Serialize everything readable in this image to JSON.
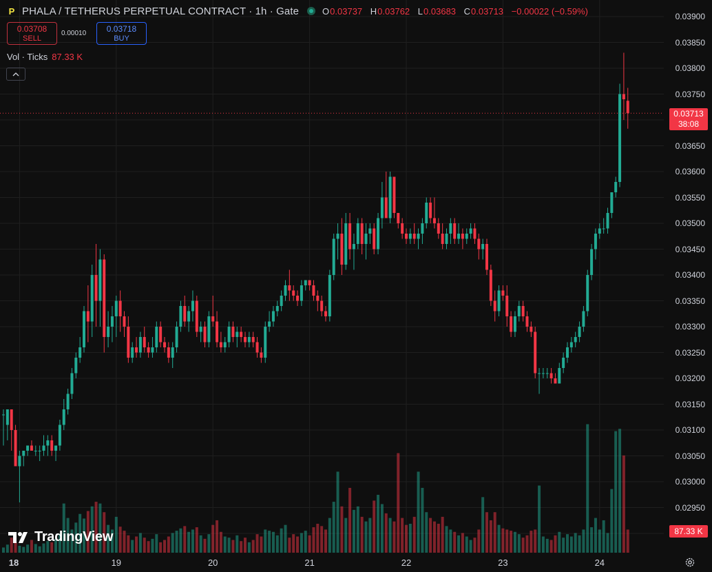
{
  "header": {
    "title": "PHALA / TETHERUS PERPETUAL CONTRACT · 1h · Gate",
    "ohlc": {
      "o_label": "O",
      "o": "0.03737",
      "h_label": "H",
      "h": "0.03762",
      "l_label": "L",
      "l": "0.03683",
      "c_label": "C",
      "c": "0.03713",
      "change": "−0.00022 (−0.59%)"
    }
  },
  "trade": {
    "sell_price": "0.03708",
    "sell_label": "SELL",
    "spread": "0.00010",
    "buy_price": "0.03718",
    "buy_label": "BUY"
  },
  "volume_indicator": {
    "label": "Vol · Ticks",
    "value": "87.33 K"
  },
  "price_label": {
    "price": "0.03713",
    "countdown": "38:08"
  },
  "volume_label": "87.33 K",
  "branding": "TradingView",
  "colors": {
    "up": "#22ab94",
    "down": "#f23645",
    "background": "#0f0f0f",
    "grid": "#1f1f1f"
  },
  "chart_data": {
    "type": "candlestick",
    "interval": "1h",
    "price_ylim": [
      0.0288,
      0.0391
    ],
    "ytick_labels": [
      "0.03900",
      "0.03850",
      "0.03800",
      "0.03750",
      "0.03700",
      "0.03650",
      "0.03600",
      "0.03550",
      "0.03500",
      "0.03450",
      "0.03400",
      "0.03350",
      "0.03300",
      "0.03250",
      "0.03200",
      "0.03150",
      "0.03100",
      "0.03050",
      "0.03000",
      "0.02950",
      "0.02900"
    ],
    "xtick_labels": [
      "18",
      "19",
      "20",
      "21",
      "22",
      "23",
      "24"
    ],
    "last_price": 0.03713,
    "candles": [
      {
        "o": 0.0313,
        "h": 0.0314,
        "l": 0.0307,
        "c": 0.0313,
        "v": 9
      },
      {
        "o": 0.0311,
        "h": 0.0314,
        "l": 0.0308,
        "c": 0.0314,
        "v": 14
      },
      {
        "o": 0.0314,
        "h": 0.0314,
        "l": 0.0306,
        "c": 0.031,
        "v": 26
      },
      {
        "o": 0.031,
        "h": 0.0311,
        "l": 0.0303,
        "c": 0.0303,
        "v": 18
      },
      {
        "o": 0.0303,
        "h": 0.0306,
        "l": 0.0296,
        "c": 0.0305,
        "v": 12
      },
      {
        "o": 0.0305,
        "h": 0.0306,
        "l": 0.0303,
        "c": 0.0306,
        "v": 10
      },
      {
        "o": 0.0306,
        "h": 0.0307,
        "l": 0.0305,
        "c": 0.0307,
        "v": 14
      },
      {
        "o": 0.0307,
        "h": 0.0308,
        "l": 0.0306,
        "c": 0.0306,
        "v": 22
      },
      {
        "o": 0.0306,
        "h": 0.0307,
        "l": 0.0305,
        "c": 0.0306,
        "v": 15
      },
      {
        "o": 0.0306,
        "h": 0.0307,
        "l": 0.0304,
        "c": 0.0306,
        "v": 11
      },
      {
        "o": 0.0306,
        "h": 0.0309,
        "l": 0.0305,
        "c": 0.0307,
        "v": 16
      },
      {
        "o": 0.0307,
        "h": 0.0309,
        "l": 0.0305,
        "c": 0.0308,
        "v": 20
      },
      {
        "o": 0.0308,
        "h": 0.0309,
        "l": 0.0305,
        "c": 0.0306,
        "v": 18
      },
      {
        "o": 0.0306,
        "h": 0.0307,
        "l": 0.0304,
        "c": 0.0307,
        "v": 24
      },
      {
        "o": 0.0307,
        "h": 0.0312,
        "l": 0.0306,
        "c": 0.0311,
        "v": 33
      },
      {
        "o": 0.0311,
        "h": 0.0316,
        "l": 0.031,
        "c": 0.0314,
        "v": 85
      },
      {
        "o": 0.0314,
        "h": 0.0318,
        "l": 0.0313,
        "c": 0.0317,
        "v": 60
      },
      {
        "o": 0.0317,
        "h": 0.0322,
        "l": 0.0316,
        "c": 0.0321,
        "v": 40
      },
      {
        "o": 0.0321,
        "h": 0.0325,
        "l": 0.032,
        "c": 0.0324,
        "v": 52
      },
      {
        "o": 0.0324,
        "h": 0.0328,
        "l": 0.0323,
        "c": 0.0326,
        "v": 67
      },
      {
        "o": 0.0326,
        "h": 0.0334,
        "l": 0.0325,
        "c": 0.0333,
        "v": 59
      },
      {
        "o": 0.0333,
        "h": 0.0338,
        "l": 0.0327,
        "c": 0.0331,
        "v": 72
      },
      {
        "o": 0.0331,
        "h": 0.0342,
        "l": 0.0328,
        "c": 0.034,
        "v": 80
      },
      {
        "o": 0.034,
        "h": 0.0346,
        "l": 0.033,
        "c": 0.0335,
        "v": 88
      },
      {
        "o": 0.0335,
        "h": 0.0345,
        "l": 0.033,
        "c": 0.0343,
        "v": 85
      },
      {
        "o": 0.0343,
        "h": 0.0344,
        "l": 0.0325,
        "c": 0.0328,
        "v": 70
      },
      {
        "o": 0.0328,
        "h": 0.0333,
        "l": 0.0326,
        "c": 0.033,
        "v": 48
      },
      {
        "o": 0.033,
        "h": 0.0334,
        "l": 0.0327,
        "c": 0.0332,
        "v": 40
      },
      {
        "o": 0.0332,
        "h": 0.0336,
        "l": 0.0328,
        "c": 0.0335,
        "v": 62
      },
      {
        "o": 0.0335,
        "h": 0.0337,
        "l": 0.0329,
        "c": 0.0332,
        "v": 45
      },
      {
        "o": 0.0332,
        "h": 0.0333,
        "l": 0.0328,
        "c": 0.033,
        "v": 38
      },
      {
        "o": 0.033,
        "h": 0.0332,
        "l": 0.0323,
        "c": 0.0324,
        "v": 30
      },
      {
        "o": 0.0324,
        "h": 0.0327,
        "l": 0.0323,
        "c": 0.0326,
        "v": 22
      },
      {
        "o": 0.0326,
        "h": 0.0328,
        "l": 0.0324,
        "c": 0.0325,
        "v": 28
      },
      {
        "o": 0.0325,
        "h": 0.0329,
        "l": 0.0324,
        "c": 0.0328,
        "v": 34
      },
      {
        "o": 0.0328,
        "h": 0.033,
        "l": 0.0325,
        "c": 0.0326,
        "v": 26
      },
      {
        "o": 0.0326,
        "h": 0.0327,
        "l": 0.0324,
        "c": 0.0325,
        "v": 20
      },
      {
        "o": 0.0325,
        "h": 0.0328,
        "l": 0.0324,
        "c": 0.0326,
        "v": 24
      },
      {
        "o": 0.0326,
        "h": 0.0331,
        "l": 0.0325,
        "c": 0.033,
        "v": 32
      },
      {
        "o": 0.033,
        "h": 0.0331,
        "l": 0.0326,
        "c": 0.0327,
        "v": 18
      },
      {
        "o": 0.0327,
        "h": 0.0328,
        "l": 0.0325,
        "c": 0.0326,
        "v": 22
      },
      {
        "o": 0.0326,
        "h": 0.0327,
        "l": 0.0323,
        "c": 0.0324,
        "v": 28
      },
      {
        "o": 0.0324,
        "h": 0.0327,
        "l": 0.0322,
        "c": 0.0326,
        "v": 34
      },
      {
        "o": 0.0326,
        "h": 0.0331,
        "l": 0.0325,
        "c": 0.033,
        "v": 38
      },
      {
        "o": 0.033,
        "h": 0.0335,
        "l": 0.0329,
        "c": 0.0334,
        "v": 42
      },
      {
        "o": 0.0334,
        "h": 0.0336,
        "l": 0.033,
        "c": 0.0331,
        "v": 46
      },
      {
        "o": 0.0331,
        "h": 0.0334,
        "l": 0.0329,
        "c": 0.0333,
        "v": 36
      },
      {
        "o": 0.0333,
        "h": 0.0337,
        "l": 0.0331,
        "c": 0.0335,
        "v": 40
      },
      {
        "o": 0.0335,
        "h": 0.0336,
        "l": 0.0328,
        "c": 0.0329,
        "v": 44
      },
      {
        "o": 0.0329,
        "h": 0.0331,
        "l": 0.0327,
        "c": 0.033,
        "v": 30
      },
      {
        "o": 0.033,
        "h": 0.0331,
        "l": 0.0326,
        "c": 0.0327,
        "v": 24
      },
      {
        "o": 0.0327,
        "h": 0.0333,
        "l": 0.0326,
        "c": 0.0332,
        "v": 32
      },
      {
        "o": 0.0332,
        "h": 0.0336,
        "l": 0.033,
        "c": 0.0331,
        "v": 48
      },
      {
        "o": 0.0331,
        "h": 0.0333,
        "l": 0.0326,
        "c": 0.0327,
        "v": 56
      },
      {
        "o": 0.0327,
        "h": 0.0329,
        "l": 0.0325,
        "c": 0.0326,
        "v": 36
      },
      {
        "o": 0.0326,
        "h": 0.0328,
        "l": 0.0325,
        "c": 0.0327,
        "v": 28
      },
      {
        "o": 0.0327,
        "h": 0.0331,
        "l": 0.0326,
        "c": 0.033,
        "v": 26
      },
      {
        "o": 0.033,
        "h": 0.0331,
        "l": 0.0327,
        "c": 0.0328,
        "v": 22
      },
      {
        "o": 0.0328,
        "h": 0.033,
        "l": 0.0326,
        "c": 0.0329,
        "v": 30
      },
      {
        "o": 0.0329,
        "h": 0.033,
        "l": 0.0327,
        "c": 0.0328,
        "v": 20
      },
      {
        "o": 0.0328,
        "h": 0.0329,
        "l": 0.0326,
        "c": 0.0327,
        "v": 26
      },
      {
        "o": 0.0327,
        "h": 0.0329,
        "l": 0.0326,
        "c": 0.0328,
        "v": 18
      },
      {
        "o": 0.0328,
        "h": 0.0329,
        "l": 0.0326,
        "c": 0.0327,
        "v": 22
      },
      {
        "o": 0.0327,
        "h": 0.0328,
        "l": 0.0324,
        "c": 0.0325,
        "v": 32
      },
      {
        "o": 0.0325,
        "h": 0.0326,
        "l": 0.0323,
        "c": 0.0324,
        "v": 28
      },
      {
        "o": 0.0324,
        "h": 0.0331,
        "l": 0.0323,
        "c": 0.033,
        "v": 40
      },
      {
        "o": 0.033,
        "h": 0.0333,
        "l": 0.0329,
        "c": 0.0331,
        "v": 38
      },
      {
        "o": 0.0331,
        "h": 0.0334,
        "l": 0.033,
        "c": 0.0333,
        "v": 36
      },
      {
        "o": 0.0333,
        "h": 0.0335,
        "l": 0.0332,
        "c": 0.0334,
        "v": 30
      },
      {
        "o": 0.0334,
        "h": 0.0337,
        "l": 0.0333,
        "c": 0.0336,
        "v": 42
      },
      {
        "o": 0.0336,
        "h": 0.0339,
        "l": 0.0335,
        "c": 0.0338,
        "v": 48
      },
      {
        "o": 0.0338,
        "h": 0.0341,
        "l": 0.0335,
        "c": 0.0337,
        "v": 26
      },
      {
        "o": 0.0337,
        "h": 0.0338,
        "l": 0.0335,
        "c": 0.0336,
        "v": 32
      },
      {
        "o": 0.0336,
        "h": 0.0337,
        "l": 0.0334,
        "c": 0.0335,
        "v": 28
      },
      {
        "o": 0.0335,
        "h": 0.0339,
        "l": 0.0334,
        "c": 0.0338,
        "v": 34
      },
      {
        "o": 0.0338,
        "h": 0.0339,
        "l": 0.0337,
        "c": 0.0339,
        "v": 38
      },
      {
        "o": 0.0339,
        "h": 0.0339,
        "l": 0.0337,
        "c": 0.0338,
        "v": 30
      },
      {
        "o": 0.0338,
        "h": 0.0339,
        "l": 0.0335,
        "c": 0.0336,
        "v": 44
      },
      {
        "o": 0.0336,
        "h": 0.0337,
        "l": 0.0333,
        "c": 0.0335,
        "v": 50
      },
      {
        "o": 0.0335,
        "h": 0.0336,
        "l": 0.0332,
        "c": 0.0333,
        "v": 46
      },
      {
        "o": 0.0333,
        "h": 0.0334,
        "l": 0.0331,
        "c": 0.0332,
        "v": 40
      },
      {
        "o": 0.0332,
        "h": 0.0341,
        "l": 0.0331,
        "c": 0.034,
        "v": 60
      },
      {
        "o": 0.034,
        "h": 0.0348,
        "l": 0.0339,
        "c": 0.0347,
        "v": 88
      },
      {
        "o": 0.0347,
        "h": 0.035,
        "l": 0.0343,
        "c": 0.0348,
        "v": 140
      },
      {
        "o": 0.0348,
        "h": 0.0351,
        "l": 0.034,
        "c": 0.0342,
        "v": 80
      },
      {
        "o": 0.0342,
        "h": 0.0352,
        "l": 0.0341,
        "c": 0.035,
        "v": 60
      },
      {
        "o": 0.035,
        "h": 0.0352,
        "l": 0.0343,
        "c": 0.0345,
        "v": 112
      },
      {
        "o": 0.0345,
        "h": 0.0348,
        "l": 0.0341,
        "c": 0.0346,
        "v": 74
      },
      {
        "o": 0.0346,
        "h": 0.0351,
        "l": 0.0345,
        "c": 0.035,
        "v": 80
      },
      {
        "o": 0.035,
        "h": 0.0351,
        "l": 0.0344,
        "c": 0.0346,
        "v": 62
      },
      {
        "o": 0.0346,
        "h": 0.035,
        "l": 0.0343,
        "c": 0.0348,
        "v": 54
      },
      {
        "o": 0.0348,
        "h": 0.035,
        "l": 0.0346,
        "c": 0.0349,
        "v": 60
      },
      {
        "o": 0.0349,
        "h": 0.035,
        "l": 0.0344,
        "c": 0.0345,
        "v": 90
      },
      {
        "o": 0.0345,
        "h": 0.0352,
        "l": 0.0344,
        "c": 0.0351,
        "v": 100
      },
      {
        "o": 0.0351,
        "h": 0.0358,
        "l": 0.0349,
        "c": 0.0355,
        "v": 84
      },
      {
        "o": 0.0355,
        "h": 0.036,
        "l": 0.0351,
        "c": 0.0351,
        "v": 68
      },
      {
        "o": 0.0351,
        "h": 0.036,
        "l": 0.035,
        "c": 0.0359,
        "v": 60
      },
      {
        "o": 0.0359,
        "h": 0.0359,
        "l": 0.0351,
        "c": 0.0352,
        "v": 54
      },
      {
        "o": 0.0352,
        "h": 0.0352,
        "l": 0.0349,
        "c": 0.035,
        "v": 172
      },
      {
        "o": 0.035,
        "h": 0.0351,
        "l": 0.0347,
        "c": 0.0348,
        "v": 60
      },
      {
        "o": 0.0348,
        "h": 0.0349,
        "l": 0.0346,
        "c": 0.0347,
        "v": 48
      },
      {
        "o": 0.0347,
        "h": 0.0349,
        "l": 0.0346,
        "c": 0.0348,
        "v": 50
      },
      {
        "o": 0.0348,
        "h": 0.035,
        "l": 0.0346,
        "c": 0.0347,
        "v": 62
      },
      {
        "o": 0.0347,
        "h": 0.0349,
        "l": 0.0345,
        "c": 0.0348,
        "v": 140
      },
      {
        "o": 0.0348,
        "h": 0.0351,
        "l": 0.0346,
        "c": 0.035,
        "v": 112
      },
      {
        "o": 0.035,
        "h": 0.0355,
        "l": 0.0349,
        "c": 0.0354,
        "v": 70
      },
      {
        "o": 0.0354,
        "h": 0.0355,
        "l": 0.035,
        "c": 0.0351,
        "v": 60
      },
      {
        "o": 0.0351,
        "h": 0.0355,
        "l": 0.0349,
        "c": 0.035,
        "v": 54
      },
      {
        "o": 0.035,
        "h": 0.0351,
        "l": 0.0347,
        "c": 0.0348,
        "v": 50
      },
      {
        "o": 0.0348,
        "h": 0.035,
        "l": 0.0345,
        "c": 0.0346,
        "v": 62
      },
      {
        "o": 0.0346,
        "h": 0.0349,
        "l": 0.0345,
        "c": 0.0348,
        "v": 46
      },
      {
        "o": 0.0348,
        "h": 0.0351,
        "l": 0.0346,
        "c": 0.035,
        "v": 40
      },
      {
        "o": 0.035,
        "h": 0.0351,
        "l": 0.0346,
        "c": 0.0347,
        "v": 36
      },
      {
        "o": 0.0347,
        "h": 0.035,
        "l": 0.0346,
        "c": 0.0348,
        "v": 30
      },
      {
        "o": 0.0348,
        "h": 0.0349,
        "l": 0.0345,
        "c": 0.0347,
        "v": 34
      },
      {
        "o": 0.0347,
        "h": 0.0349,
        "l": 0.0346,
        "c": 0.0348,
        "v": 28
      },
      {
        "o": 0.0348,
        "h": 0.035,
        "l": 0.0347,
        "c": 0.0349,
        "v": 22
      },
      {
        "o": 0.0349,
        "h": 0.035,
        "l": 0.0346,
        "c": 0.0347,
        "v": 26
      },
      {
        "o": 0.0347,
        "h": 0.0348,
        "l": 0.0343,
        "c": 0.0345,
        "v": 40
      },
      {
        "o": 0.0345,
        "h": 0.0347,
        "l": 0.0343,
        "c": 0.0346,
        "v": 96
      },
      {
        "o": 0.0346,
        "h": 0.0347,
        "l": 0.034,
        "c": 0.0341,
        "v": 70
      },
      {
        "o": 0.0341,
        "h": 0.0342,
        "l": 0.0334,
        "c": 0.0335,
        "v": 56
      },
      {
        "o": 0.0335,
        "h": 0.0337,
        "l": 0.0331,
        "c": 0.0333,
        "v": 70
      },
      {
        "o": 0.0333,
        "h": 0.0338,
        "l": 0.0332,
        "c": 0.0337,
        "v": 48
      },
      {
        "o": 0.0337,
        "h": 0.0338,
        "l": 0.0335,
        "c": 0.0336,
        "v": 42
      },
      {
        "o": 0.0336,
        "h": 0.0338,
        "l": 0.033,
        "c": 0.0332,
        "v": 40
      },
      {
        "o": 0.0332,
        "h": 0.0333,
        "l": 0.0328,
        "c": 0.0329,
        "v": 38
      },
      {
        "o": 0.0329,
        "h": 0.0333,
        "l": 0.0328,
        "c": 0.0332,
        "v": 36
      },
      {
        "o": 0.0332,
        "h": 0.0335,
        "l": 0.0331,
        "c": 0.0334,
        "v": 32
      },
      {
        "o": 0.0334,
        "h": 0.0335,
        "l": 0.0331,
        "c": 0.0332,
        "v": 26
      },
      {
        "o": 0.0332,
        "h": 0.0333,
        "l": 0.0329,
        "c": 0.033,
        "v": 30
      },
      {
        "o": 0.033,
        "h": 0.0331,
        "l": 0.0328,
        "c": 0.0329,
        "v": 38
      },
      {
        "o": 0.0329,
        "h": 0.033,
        "l": 0.032,
        "c": 0.0321,
        "v": 40
      },
      {
        "o": 0.0321,
        "h": 0.0322,
        "l": 0.0317,
        "c": 0.0321,
        "v": 116
      },
      {
        "o": 0.0321,
        "h": 0.0322,
        "l": 0.032,
        "c": 0.0321,
        "v": 28
      },
      {
        "o": 0.0321,
        "h": 0.0322,
        "l": 0.032,
        "c": 0.0321,
        "v": 24
      },
      {
        "o": 0.0321,
        "h": 0.0322,
        "l": 0.0319,
        "c": 0.032,
        "v": 22
      },
      {
        "o": 0.032,
        "h": 0.0321,
        "l": 0.0319,
        "c": 0.0319,
        "v": 30
      },
      {
        "o": 0.0319,
        "h": 0.0323,
        "l": 0.0319,
        "c": 0.0322,
        "v": 36
      },
      {
        "o": 0.0322,
        "h": 0.0325,
        "l": 0.0321,
        "c": 0.0324,
        "v": 26
      },
      {
        "o": 0.0324,
        "h": 0.0327,
        "l": 0.0323,
        "c": 0.0326,
        "v": 32
      },
      {
        "o": 0.0326,
        "h": 0.0328,
        "l": 0.0325,
        "c": 0.0327,
        "v": 28
      },
      {
        "o": 0.0327,
        "h": 0.0329,
        "l": 0.0326,
        "c": 0.0328,
        "v": 34
      },
      {
        "o": 0.0328,
        "h": 0.0331,
        "l": 0.0327,
        "c": 0.033,
        "v": 30
      },
      {
        "o": 0.033,
        "h": 0.0334,
        "l": 0.0329,
        "c": 0.0333,
        "v": 40
      },
      {
        "o": 0.0333,
        "h": 0.0341,
        "l": 0.0332,
        "c": 0.034,
        "v": 222
      },
      {
        "o": 0.034,
        "h": 0.0346,
        "l": 0.0339,
        "c": 0.0345,
        "v": 44
      },
      {
        "o": 0.0345,
        "h": 0.0349,
        "l": 0.0343,
        "c": 0.0348,
        "v": 60
      },
      {
        "o": 0.0348,
        "h": 0.035,
        "l": 0.0347,
        "c": 0.0349,
        "v": 40
      },
      {
        "o": 0.0349,
        "h": 0.0351,
        "l": 0.0348,
        "c": 0.0349,
        "v": 56
      },
      {
        "o": 0.0349,
        "h": 0.0353,
        "l": 0.0348,
        "c": 0.0352,
        "v": 34
      },
      {
        "o": 0.0352,
        "h": 0.0356,
        "l": 0.0351,
        "c": 0.0356,
        "v": 110
      },
      {
        "o": 0.0356,
        "h": 0.0359,
        "l": 0.0355,
        "c": 0.0358,
        "v": 210
      },
      {
        "o": 0.0358,
        "h": 0.0377,
        "l": 0.0357,
        "c": 0.0375,
        "v": 214
      },
      {
        "o": 0.0375,
        "h": 0.0383,
        "l": 0.037,
        "c": 0.0374,
        "v": 168
      },
      {
        "o": 0.03737,
        "h": 0.03762,
        "l": 0.03683,
        "c": 0.03713,
        "v": 40
      }
    ]
  }
}
